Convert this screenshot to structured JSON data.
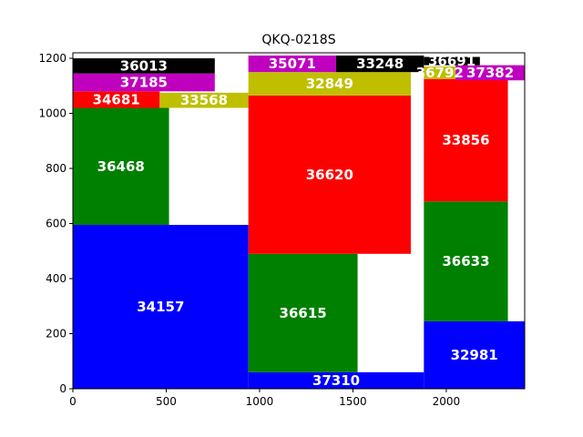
{
  "chart_data": {
    "type": "treemap",
    "title": "QKQ-0218S",
    "xlabel": "",
    "ylabel": "",
    "xlim": [
      0,
      2420
    ],
    "ylim": [
      0,
      1220
    ],
    "xticks": [
      0,
      500,
      1000,
      1500,
      2000
    ],
    "yticks": [
      0,
      200,
      400,
      600,
      800,
      1000,
      1200
    ],
    "grid": false,
    "legend": "none",
    "rectangles": [
      {
        "label": "34157",
        "x0": 0,
        "x1": 940,
        "y0": 0,
        "y1": 595,
        "color": "#0000ff"
      },
      {
        "label": "36468",
        "x0": 0,
        "x1": 515,
        "y0": 595,
        "y1": 1020,
        "color": "#008000"
      },
      {
        "label": "34681",
        "x0": 0,
        "x1": 465,
        "y0": 1020,
        "y1": 1080,
        "color": "#ff0000"
      },
      {
        "label": "33568",
        "x0": 465,
        "x1": 940,
        "y0": 1020,
        "y1": 1075,
        "color": "#bfbf00"
      },
      {
        "label": "37185",
        "x0": 0,
        "x1": 760,
        "y0": 1080,
        "y1": 1145,
        "color": "#bf00bf"
      },
      {
        "label": "36013",
        "x0": 0,
        "x1": 760,
        "y0": 1145,
        "y1": 1200,
        "color": "#000000"
      },
      {
        "label": "37310",
        "x0": 940,
        "x1": 1880,
        "y0": 0,
        "y1": 60,
        "color": "#0000ff"
      },
      {
        "label": "36615",
        "x0": 940,
        "x1": 1525,
        "y0": 60,
        "y1": 490,
        "color": "#008000"
      },
      {
        "label": "36620",
        "x0": 940,
        "x1": 1810,
        "y0": 490,
        "y1": 1065,
        "color": "#ff0000"
      },
      {
        "label": "32849",
        "x0": 940,
        "x1": 1810,
        "y0": 1065,
        "y1": 1150,
        "color": "#bfbf00"
      },
      {
        "label": "35071",
        "x0": 940,
        "x1": 1410,
        "y0": 1150,
        "y1": 1210,
        "color": "#bf00bf"
      },
      {
        "label": "33248",
        "x0": 1410,
        "x1": 1880,
        "y0": 1150,
        "y1": 1210,
        "color": "#000000"
      },
      {
        "label": "32981",
        "x0": 1880,
        "x1": 2420,
        "y0": 0,
        "y1": 245,
        "color": "#0000ff"
      },
      {
        "label": "36633",
        "x0": 1880,
        "x1": 2330,
        "y0": 245,
        "y1": 680,
        "color": "#008000"
      },
      {
        "label": "33856",
        "x0": 1880,
        "x1": 2330,
        "y0": 680,
        "y1": 1125,
        "color": "#ff0000"
      },
      {
        "label": "36792",
        "x0": 1880,
        "x1": 2050,
        "y0": 1125,
        "y1": 1170,
        "color": "#bfbf00"
      },
      {
        "label": "37382",
        "x0": 2050,
        "x1": 2420,
        "y0": 1120,
        "y1": 1175,
        "color": "#bf00bf"
      },
      {
        "label": "36691",
        "x0": 1880,
        "x1": 2180,
        "y0": 1175,
        "y1": 1205,
        "color": "#000000"
      }
    ]
  }
}
